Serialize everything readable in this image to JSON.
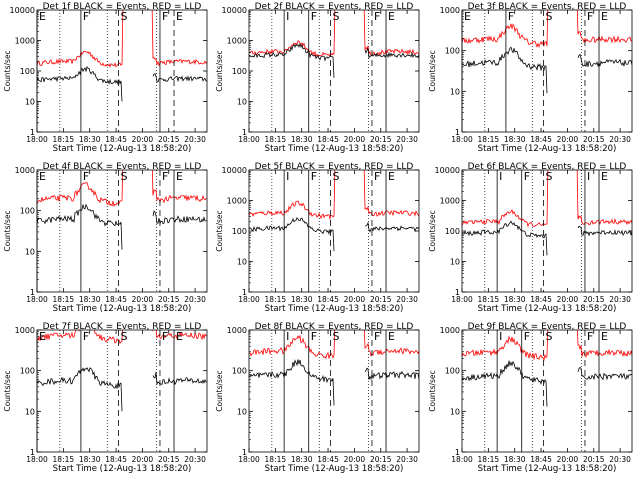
{
  "chart_data": {
    "type": "line",
    "shared": {
      "xlabel": "Start Time (12-Aug-13 18:58:20)",
      "ylabel": "Counts/sec",
      "xlim": [
        "18:00",
        "20:40"
      ],
      "xticks": [
        "18:00",
        "18:15",
        "18:30",
        "18:45",
        "20:00",
        "20:15",
        "20:30"
      ],
      "ylim": [
        1,
        1000
      ],
      "yscale": "log",
      "yticks": [
        "1",
        "10",
        "100",
        "1000"
      ],
      "yticks_large": [
        "1",
        "10",
        "100",
        "1000",
        "10000"
      ],
      "dotted_lines_at": [
        "18:13",
        "18:40",
        "20:08"
      ],
      "colors": {
        "events": "#000000",
        "lld": "#ff0000"
      }
    },
    "panels": [
      {
        "title": "Det 1f BLACK = Events, RED = LLD",
        "ylim": [
          1,
          10000
        ],
        "events_base": 50,
        "lld_base": 180,
        "saa": true,
        "markers": [
          {
            "label": "E",
            "at": "18:00",
            "style": "solid"
          },
          {
            "label": "F",
            "at": "18:25",
            "style": "solid"
          },
          {
            "label": "S",
            "at": "18:52",
            "style": "dashed"
          },
          {
            "label": "F",
            "at": "20:10",
            "style": "solid"
          },
          {
            "label": "E",
            "at": "20:18",
            "style": "dashed"
          }
        ]
      },
      {
        "title": "Det 2f BLACK = Events, RED = LLD",
        "ylim": [
          1,
          10000
        ],
        "events_base": 300,
        "lld_base": 380,
        "saa": true,
        "markers": [
          {
            "label": "I",
            "at": "18:20",
            "style": "solid"
          },
          {
            "label": "F",
            "at": "18:34",
            "style": "solid"
          },
          {
            "label": "S",
            "at": "18:52",
            "style": "dashed"
          },
          {
            "label": "F",
            "at": "20:10",
            "style": "dashed"
          },
          {
            "label": "E",
            "at": "20:18",
            "style": "solid"
          }
        ]
      },
      {
        "title": "Det 3f BLACK = Events, RED = LLD",
        "ylim": [
          1,
          1000
        ],
        "events_base": 45,
        "lld_base": 170,
        "saa": true,
        "markers": [
          {
            "label": "E",
            "at": "18:00",
            "style": "solid"
          },
          {
            "label": "F",
            "at": "18:25",
            "style": "solid"
          },
          {
            "label": "S",
            "at": "18:52",
            "style": "dashed"
          },
          {
            "label": "F",
            "at": "20:10",
            "style": "dashed"
          },
          {
            "label": "E",
            "at": "20:18",
            "style": "solid"
          }
        ]
      },
      {
        "title": "Det 4f BLACK = Events, RED = LLD",
        "ylim": [
          1,
          1000
        ],
        "events_base": 55,
        "lld_base": 180,
        "saa": true,
        "markers": [
          {
            "label": "E",
            "at": "18:00",
            "style": "solid"
          },
          {
            "label": "F",
            "at": "18:25",
            "style": "solid"
          },
          {
            "label": "S",
            "at": "18:52",
            "style": "dashed"
          },
          {
            "label": "F",
            "at": "20:10",
            "style": "dashed"
          },
          {
            "label": "E",
            "at": "20:18",
            "style": "solid"
          }
        ]
      },
      {
        "title": "Det 5f BLACK = Events, RED = LLD",
        "ylim": [
          1,
          10000
        ],
        "events_base": 110,
        "lld_base": 350,
        "saa": true,
        "markers": [
          {
            "label": "I",
            "at": "18:20",
            "style": "solid"
          },
          {
            "label": "F",
            "at": "18:34",
            "style": "solid"
          },
          {
            "label": "S",
            "at": "18:52",
            "style": "dashed"
          },
          {
            "label": "F",
            "at": "20:10",
            "style": "dashed"
          },
          {
            "label": "E",
            "at": "20:18",
            "style": "solid"
          }
        ]
      },
      {
        "title": "Det 6f BLACK = Events, RED = LLD",
        "ylim": [
          1,
          10000
        ],
        "events_base": 80,
        "lld_base": 180,
        "saa": true,
        "markers": [
          {
            "label": "I",
            "at": "18:20",
            "style": "solid"
          },
          {
            "label": "F",
            "at": "18:34",
            "style": "solid"
          },
          {
            "label": "S",
            "at": "18:52",
            "style": "dashed"
          },
          {
            "label": "I",
            "at": "20:10",
            "style": "solid"
          },
          {
            "label": "E",
            "at": "20:18",
            "style": "solid"
          }
        ]
      },
      {
        "title": "Det 7f BLACK = Events, RED = LLD",
        "ylim": [
          1,
          1000
        ],
        "events_base": 50,
        "lld_base": 650,
        "saa": true,
        "markers": [
          {
            "label": "E",
            "at": "18:00",
            "style": "solid"
          },
          {
            "label": "F",
            "at": "18:25",
            "style": "solid"
          },
          {
            "label": "S",
            "at": "18:52",
            "style": "dashed"
          },
          {
            "label": "F",
            "at": "20:10",
            "style": "dashed"
          },
          {
            "label": "E",
            "at": "20:18",
            "style": "solid"
          }
        ]
      },
      {
        "title": "Det 8f BLACK = Events, RED = LLD",
        "ylim": [
          1,
          1000
        ],
        "events_base": 70,
        "lld_base": 270,
        "saa": true,
        "markers": [
          {
            "label": "I",
            "at": "18:20",
            "style": "solid"
          },
          {
            "label": "F",
            "at": "18:34",
            "style": "solid"
          },
          {
            "label": "S",
            "at": "18:52",
            "style": "dashed"
          },
          {
            "label": "F",
            "at": "20:10",
            "style": "dashed"
          },
          {
            "label": "E",
            "at": "20:18",
            "style": "solid"
          }
        ]
      },
      {
        "title": "Det 9f BLACK = Events, RED = LLD",
        "ylim": [
          1,
          1000
        ],
        "events_base": 65,
        "lld_base": 250,
        "saa": true,
        "markers": [
          {
            "label": "I",
            "at": "18:20",
            "style": "solid"
          },
          {
            "label": "F",
            "at": "18:34",
            "style": "solid"
          },
          {
            "label": "S",
            "at": "18:52",
            "style": "dashed"
          },
          {
            "label": "F",
            "at": "20:10",
            "style": "dashed"
          },
          {
            "label": "E",
            "at": "20:18",
            "style": "solid"
          }
        ]
      }
    ]
  }
}
